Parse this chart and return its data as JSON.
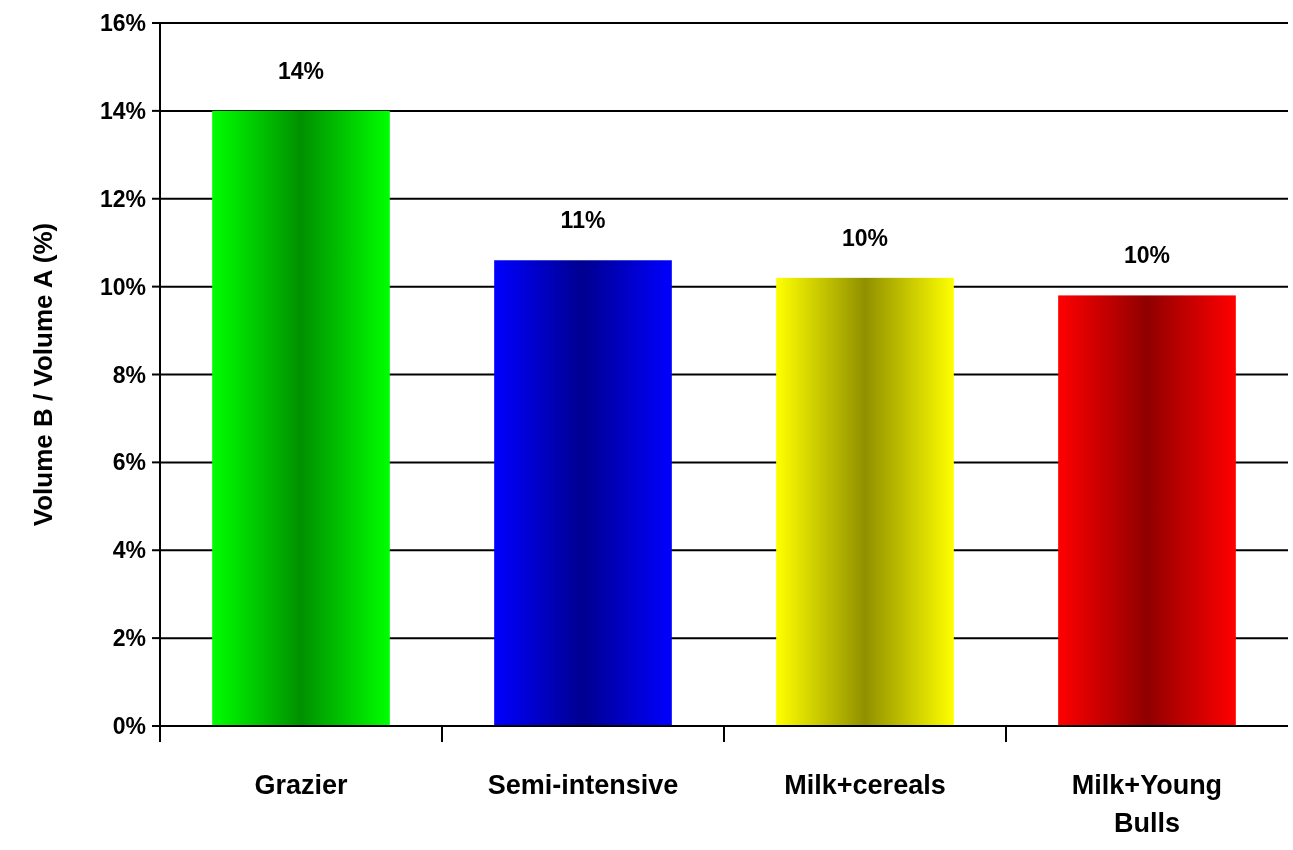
{
  "chart_data": {
    "type": "bar",
    "ylabel": "Volume B / Volume A (%)",
    "categories": [
      "Grazier",
      "Semi-intensive",
      "Milk+cereals",
      "Milk+Young Bulls"
    ],
    "values": [
      14,
      10.6,
      10.2,
      9.8
    ],
    "colors": [
      "#00ff00",
      "#0000ff",
      "#ffff00",
      "#ff0000"
    ],
    "value_labels": [
      "14%",
      "11%",
      "10%",
      "10%"
    ],
    "ylim": [
      0,
      16
    ],
    "yticks": [
      {
        "value": 0,
        "label": "0%"
      },
      {
        "value": 2,
        "label": "2%"
      },
      {
        "value": 4,
        "label": "4%"
      },
      {
        "value": 6,
        "label": "6%"
      },
      {
        "value": 8,
        "label": "8%"
      },
      {
        "value": 10,
        "label": "10%"
      },
      {
        "value": 12,
        "label": "12%"
      },
      {
        "value": 14,
        "label": "14%"
      },
      {
        "value": 16,
        "label": "16%"
      }
    ],
    "grid": "y"
  }
}
